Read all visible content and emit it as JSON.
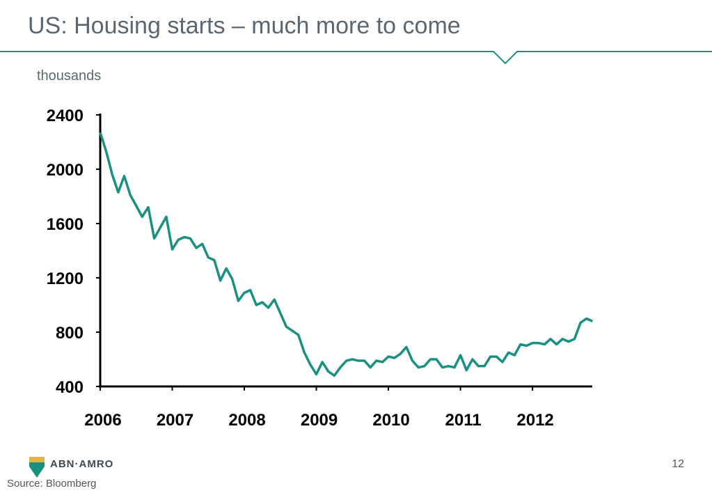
{
  "page": {
    "title": "US: Housing starts – much more to come",
    "unit_label": "thousands",
    "page_number": "12",
    "source": "Source: Bloomberg",
    "logo_text": "ABN·AMRO",
    "accent_color": "#1a9080",
    "line_color": "#1a9080"
  },
  "chart_data": {
    "type": "line",
    "title": "",
    "ylabel": "thousands",
    "xlabel": "",
    "ylim": [
      400,
      2400
    ],
    "xlim": [
      2006,
      2012.83
    ],
    "yticks": [
      400,
      800,
      1200,
      1600,
      2000,
      2400
    ],
    "xticks": [
      2006,
      2007,
      2008,
      2009,
      2010,
      2011,
      2012
    ],
    "grid": false,
    "series": [
      {
        "name": "",
        "x": [
          2006.0,
          2006.083,
          2006.167,
          2006.25,
          2006.333,
          2006.417,
          2006.5,
          2006.583,
          2006.667,
          2006.75,
          2006.833,
          2006.917,
          2007.0,
          2007.083,
          2007.167,
          2007.25,
          2007.333,
          2007.417,
          2007.5,
          2007.583,
          2007.667,
          2007.75,
          2007.833,
          2007.917,
          2008.0,
          2008.083,
          2008.167,
          2008.25,
          2008.333,
          2008.417,
          2008.5,
          2008.583,
          2008.667,
          2008.75,
          2008.833,
          2008.917,
          2009.0,
          2009.083,
          2009.167,
          2009.25,
          2009.333,
          2009.417,
          2009.5,
          2009.583,
          2009.667,
          2009.75,
          2009.833,
          2009.917,
          2010.0,
          2010.083,
          2010.167,
          2010.25,
          2010.333,
          2010.417,
          2010.5,
          2010.583,
          2010.667,
          2010.75,
          2010.833,
          2010.917,
          2011.0,
          2011.083,
          2011.167,
          2011.25,
          2011.333,
          2011.417,
          2011.5,
          2011.583,
          2011.667,
          2011.75,
          2011.833,
          2011.917,
          2012.0,
          2012.083,
          2012.167,
          2012.25,
          2012.333,
          2012.417,
          2012.5,
          2012.583,
          2012.667,
          2012.75,
          2012.833
        ],
        "values": [
          2270,
          2130,
          1960,
          1830,
          1950,
          1810,
          1730,
          1650,
          1720,
          1490,
          1570,
          1650,
          1410,
          1480,
          1500,
          1490,
          1420,
          1450,
          1350,
          1330,
          1180,
          1270,
          1190,
          1030,
          1090,
          1110,
          1000,
          1020,
          980,
          1040,
          940,
          840,
          810,
          780,
          650,
          560,
          490,
          580,
          510,
          480,
          540,
          590,
          600,
          590,
          590,
          540,
          590,
          580,
          620,
          610,
          640,
          690,
          590,
          540,
          550,
          600,
          600,
          540,
          550,
          540,
          630,
          520,
          600,
          550,
          550,
          620,
          620,
          580,
          650,
          630,
          710,
          700,
          720,
          720,
          710,
          750,
          710,
          750,
          730,
          750,
          870,
          900,
          880
        ]
      }
    ]
  }
}
